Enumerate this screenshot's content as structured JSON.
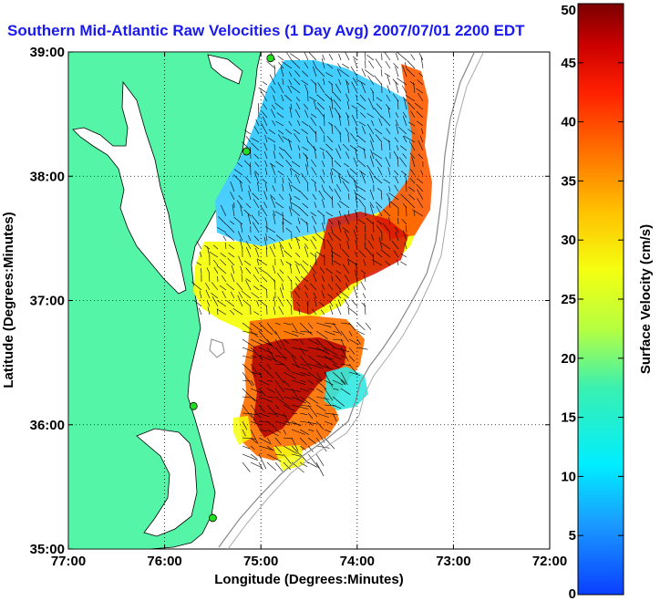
{
  "title": "Southern Mid-Atlantic Raw Velocities (1 Day Avg) 2007/07/01 2200 EDT",
  "chart_data": {
    "type": "map",
    "xlabel": "Longitude (Degrees:Minutes)",
    "ylabel": "Latitude (Degrees:Minutes)",
    "x_ticks": [
      "77:00",
      "76:00",
      "75:00",
      "74:00",
      "73:00",
      "72:00"
    ],
    "y_ticks": [
      "39:00",
      "38:00",
      "37:00",
      "36:00",
      "35:00"
    ],
    "xlim": [
      -77,
      -72
    ],
    "ylim": [
      35,
      39
    ],
    "grid": true,
    "colorbar": {
      "label": "Surface Velocity (cm/s)",
      "min": 0,
      "max": 50,
      "ticks": [
        "50",
        "45",
        "40",
        "35",
        "30",
        "25",
        "20",
        "15",
        "10",
        "5",
        "0"
      ]
    },
    "sites": [
      {
        "lon": -74.9,
        "lat": 38.95
      },
      {
        "lon": -75.15,
        "lat": 38.2
      },
      {
        "lon": -75.7,
        "lat": 36.15
      },
      {
        "lon": -75.5,
        "lat": 35.25
      }
    ],
    "colors": {
      "land": "#55f5a8",
      "sea_background": "#ffffff",
      "title": "#1a1aee"
    }
  }
}
